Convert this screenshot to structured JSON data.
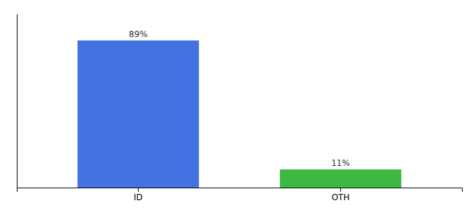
{
  "chart_data": {
    "type": "bar",
    "categories": [
      "ID",
      "OTH"
    ],
    "values": [
      89,
      11
    ],
    "value_labels": [
      "89%",
      "11%"
    ],
    "colors": [
      "#4472e0",
      "#3cb843"
    ],
    "data_labels": true,
    "ylim": [
      0,
      105
    ],
    "tick_labels": "x"
  }
}
